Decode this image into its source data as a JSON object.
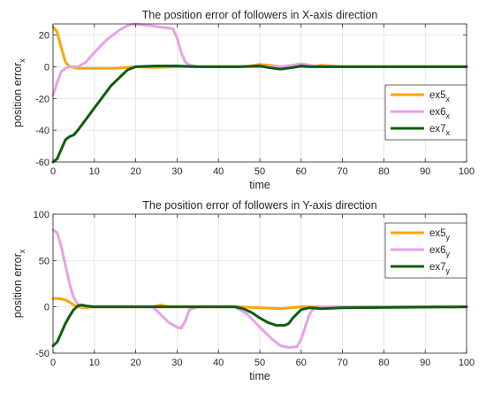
{
  "chart_data": [
    {
      "type": "line",
      "title": "The position error of followers in X-axis direction",
      "xlabel": "time",
      "ylabel": "position error",
      "ylabel_sub": "x",
      "xlim": [
        0,
        100
      ],
      "ylim": [
        -60,
        27
      ],
      "xticks": [
        0,
        10,
        20,
        30,
        40,
        50,
        60,
        70,
        80,
        90,
        100
      ],
      "yticks": [
        -60,
        -40,
        -20,
        0,
        20
      ],
      "grid": true,
      "legend_position": "right",
      "series": [
        {
          "name": "ex5",
          "sub": "x",
          "color": "#FFA500",
          "x": [
            0,
            1,
            2,
            3,
            4,
            5,
            6,
            8,
            10,
            15,
            20,
            25,
            30,
            35,
            40,
            45,
            48,
            50,
            52,
            55,
            58,
            62,
            65,
            67,
            70,
            100
          ],
          "y": [
            25,
            22,
            12,
            3,
            0,
            -0.5,
            -1,
            -1,
            -1,
            -1,
            0,
            -0.5,
            0,
            0,
            0,
            0,
            0.5,
            1.5,
            1,
            0,
            0,
            0,
            1,
            0.5,
            0,
            0
          ]
        },
        {
          "name": "ex6",
          "sub": "x",
          "color": "#E9A1E6",
          "x": [
            0,
            1,
            2,
            3,
            4,
            6,
            8,
            10,
            13,
            16,
            18,
            20,
            23,
            26,
            29,
            30,
            31,
            32,
            33,
            35,
            40,
            50,
            55,
            58,
            60,
            62,
            65,
            100
          ],
          "y": [
            -18,
            -10,
            -3,
            -1,
            0,
            0,
            3,
            9,
            17,
            23,
            26,
            27,
            26,
            25,
            24,
            18,
            9,
            3,
            1,
            0,
            0,
            0,
            0,
            1,
            2,
            1,
            0,
            0
          ]
        },
        {
          "name": "ex7",
          "sub": "x",
          "color": "#0D5E0D",
          "x": [
            0,
            1,
            2,
            3,
            4,
            5,
            6,
            8,
            10,
            12,
            14,
            16,
            18,
            20,
            25,
            30,
            35,
            40,
            45,
            50,
            52,
            55,
            58,
            60,
            62,
            65,
            70,
            100
          ],
          "y": [
            -60,
            -58,
            -52,
            -46,
            -44,
            -43,
            -40,
            -33,
            -26,
            -19,
            -12,
            -7,
            -2,
            0,
            0.5,
            0.5,
            0,
            0,
            0,
            0.5,
            -0.5,
            -1.5,
            -0.5,
            0.5,
            0,
            0,
            0,
            0
          ]
        }
      ]
    },
    {
      "type": "line",
      "title": "The position error of followers in Y-axis direction",
      "xlabel": "time",
      "ylabel": "position error",
      "ylabel_sub": "x",
      "xlim": [
        0,
        100
      ],
      "ylim": [
        -50,
        100
      ],
      "xticks": [
        0,
        10,
        20,
        30,
        40,
        50,
        60,
        70,
        80,
        90,
        100
      ],
      "yticks": [
        -50,
        0,
        50,
        100
      ],
      "grid": true,
      "legend_position": "top-right",
      "series": [
        {
          "name": "ex5",
          "sub": "y",
          "color": "#FFA500",
          "x": [
            0,
            1,
            2,
            3,
            4,
            5,
            6,
            8,
            10,
            15,
            20,
            24,
            26,
            28,
            30,
            35,
            40,
            45,
            50,
            55,
            60,
            65,
            70,
            100
          ],
          "y": [
            9,
            9,
            8.5,
            7.5,
            5,
            2,
            0,
            -1,
            0,
            0,
            0,
            0,
            2,
            0,
            0,
            0,
            0,
            0,
            -1,
            -2,
            0,
            0,
            0,
            0
          ]
        },
        {
          "name": "ex6",
          "sub": "y",
          "color": "#E9A1E6",
          "x": [
            0,
            1,
            2,
            3,
            4,
            5,
            6,
            7,
            8,
            10,
            15,
            20,
            24,
            26,
            28,
            30,
            31,
            32,
            33,
            35,
            40,
            44,
            47,
            50,
            53,
            55,
            57,
            59,
            60,
            62,
            63,
            65,
            70,
            100
          ],
          "y": [
            83,
            80,
            65,
            45,
            25,
            10,
            3,
            0,
            0,
            0,
            0,
            0,
            0,
            -8,
            -17,
            -22,
            -23,
            -15,
            -3,
            0,
            0,
            0,
            -8,
            -22,
            -35,
            -42,
            -44,
            -43,
            -35,
            -8,
            -2,
            0,
            0,
            0
          ]
        },
        {
          "name": "ex7",
          "sub": "y",
          "color": "#0D5E0D",
          "x": [
            0,
            1,
            2,
            3,
            4,
            5,
            6,
            7,
            8,
            10,
            15,
            20,
            25,
            30,
            35,
            40,
            44,
            46,
            48,
            50,
            52,
            54,
            56,
            57,
            58,
            60,
            62,
            65,
            70,
            100
          ],
          "y": [
            -42,
            -38,
            -28,
            -18,
            -10,
            -3,
            1,
            2,
            1,
            0,
            0,
            0,
            0,
            0,
            0,
            0,
            0,
            -2,
            -6,
            -12,
            -17,
            -20,
            -20,
            -18,
            -12,
            -3,
            -1,
            -2,
            -1,
            0
          ]
        }
      ]
    }
  ]
}
